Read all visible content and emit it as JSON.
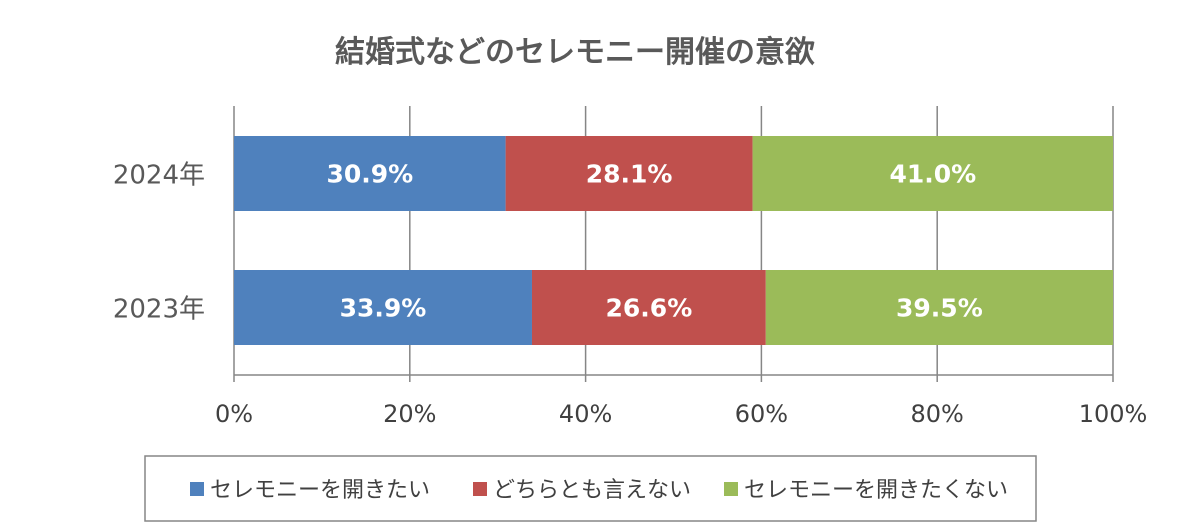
{
  "chart_data": {
    "type": "bar",
    "orientation": "horizontal",
    "stacked": true,
    "title": "結婚式などのセレモニー開催の意欲",
    "categories": [
      "2024年",
      "2023年"
    ],
    "series": [
      {
        "name": "セレモニーを開きたい",
        "color": "#4F81BD",
        "values": [
          30.9,
          33.9
        ],
        "labels": [
          "30.9%",
          "33.9%"
        ]
      },
      {
        "name": "どちらとも言えない",
        "color": "#C0504D",
        "values": [
          28.1,
          26.6
        ],
        "labels": [
          "28.1%",
          "26.6%"
        ]
      },
      {
        "name": "セレモニーを開きたくない",
        "color": "#9BBB59",
        "values": [
          41.0,
          39.5
        ],
        "labels": [
          "41.0%",
          "39.5%"
        ]
      }
    ],
    "xlim": [
      0,
      100
    ],
    "xticks": [
      0,
      20,
      40,
      60,
      80,
      100
    ],
    "xtick_labels": [
      "0%",
      "20%",
      "40%",
      "60%",
      "80%",
      "100%"
    ],
    "grid": true,
    "legend_position": "bottom"
  }
}
